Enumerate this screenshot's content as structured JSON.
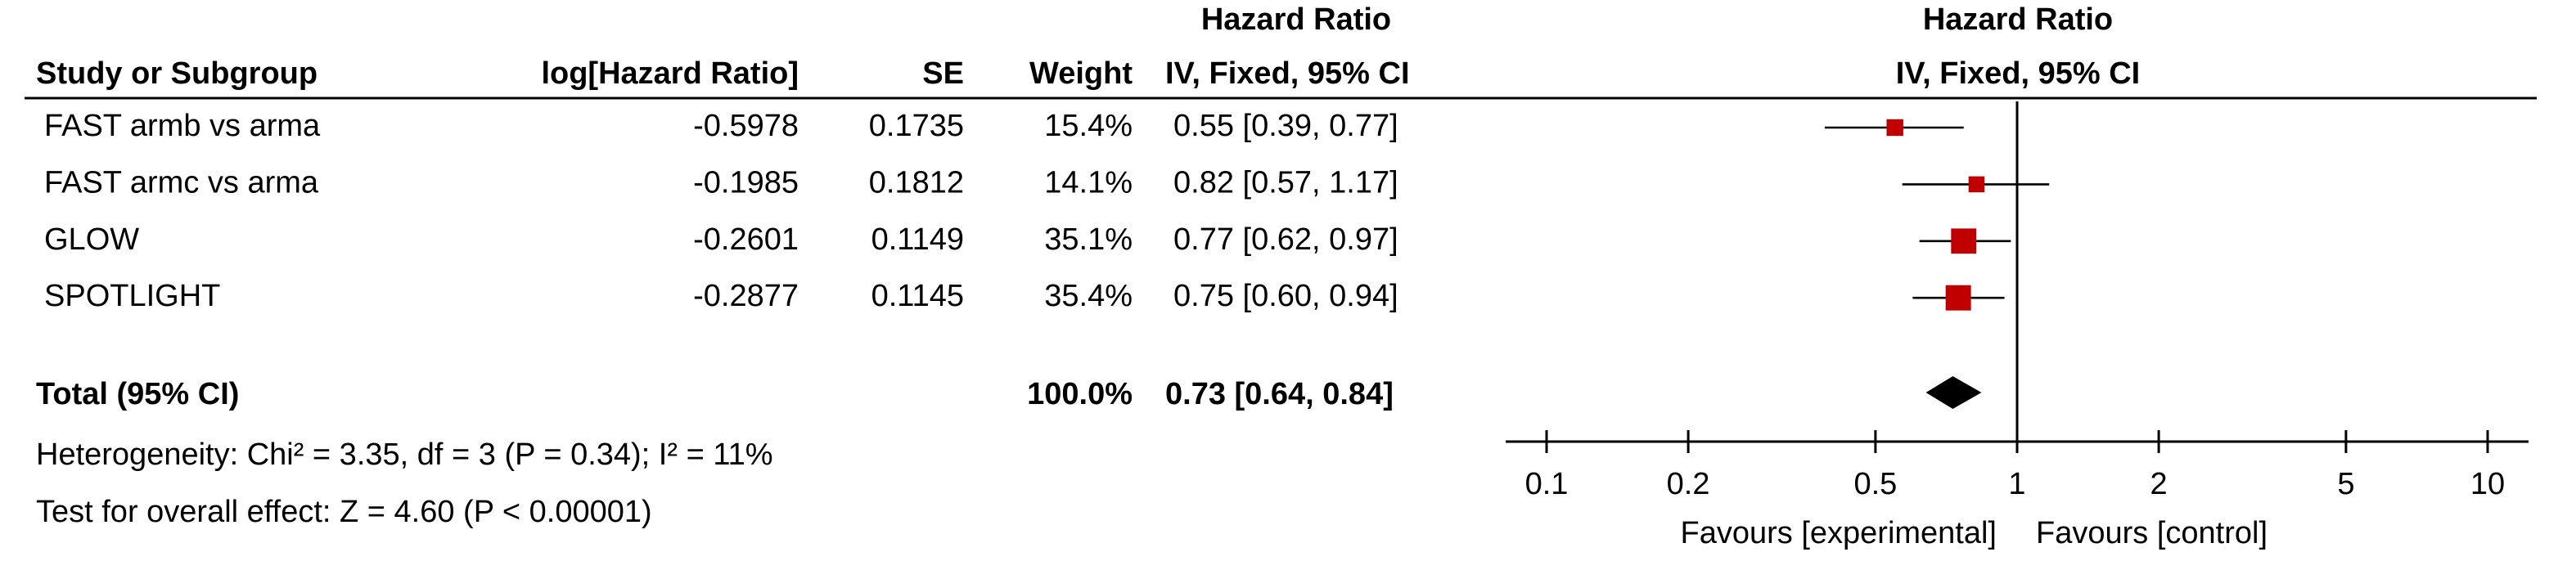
{
  "chart_data": {
    "type": "forest",
    "header": {
      "group_title": "Hazard Ratio",
      "study": "Study or Subgroup",
      "log_hr": "log[Hazard Ratio]",
      "se": "SE",
      "weight": "Weight",
      "ci": "IV, Fixed, 95% CI",
      "plot_title": "Hazard Ratio",
      "plot_subtitle": "IV, Fixed, 95% CI"
    },
    "categories": [
      "FAST armb vs arma",
      "FAST armc vs arma",
      "GLOW",
      "SPOTLIGHT"
    ],
    "log_hr": [
      -0.5978,
      -0.1985,
      -0.2601,
      -0.2877
    ],
    "se": [
      0.1735,
      0.1812,
      0.1149,
      0.1145
    ],
    "weights": [
      15.4,
      14.1,
      35.1,
      35.4
    ],
    "weight_labels": [
      "15.4%",
      "14.1%",
      "35.1%",
      "35.4%"
    ],
    "hr": [
      0.55,
      0.82,
      0.77,
      0.75
    ],
    "lower": [
      0.39,
      0.57,
      0.62,
      0.6
    ],
    "upper": [
      0.77,
      1.17,
      0.97,
      0.94
    ],
    "ci_labels": [
      "0.55 [0.39, 0.77]",
      "0.82 [0.57, 1.17]",
      "0.77 [0.62, 0.97]",
      "0.75 [0.60, 0.94]"
    ],
    "total": {
      "label": "Total (95% CI)",
      "weight": 100,
      "weight_label": "100.0%",
      "hr": 0.73,
      "lower": 0.64,
      "upper": 0.84,
      "ci_label": "0.73 [0.64, 0.84]"
    },
    "heterogeneity": "Heterogeneity: Chi² = 3.35, df = 3 (P = 0.34); I² = 11%",
    "overall_effect": "Test for overall effect: Z = 4.60 (P < 0.00001)",
    "xscale": "log",
    "xlim": [
      0.1,
      10
    ],
    "xticks": [
      0.1,
      0.2,
      0.5,
      1,
      2,
      5,
      10
    ],
    "xlabel_left": "Favours [experimental]",
    "xlabel_right": "Favours [control]",
    "color": "#c00000",
    "total_color": "#000000"
  }
}
